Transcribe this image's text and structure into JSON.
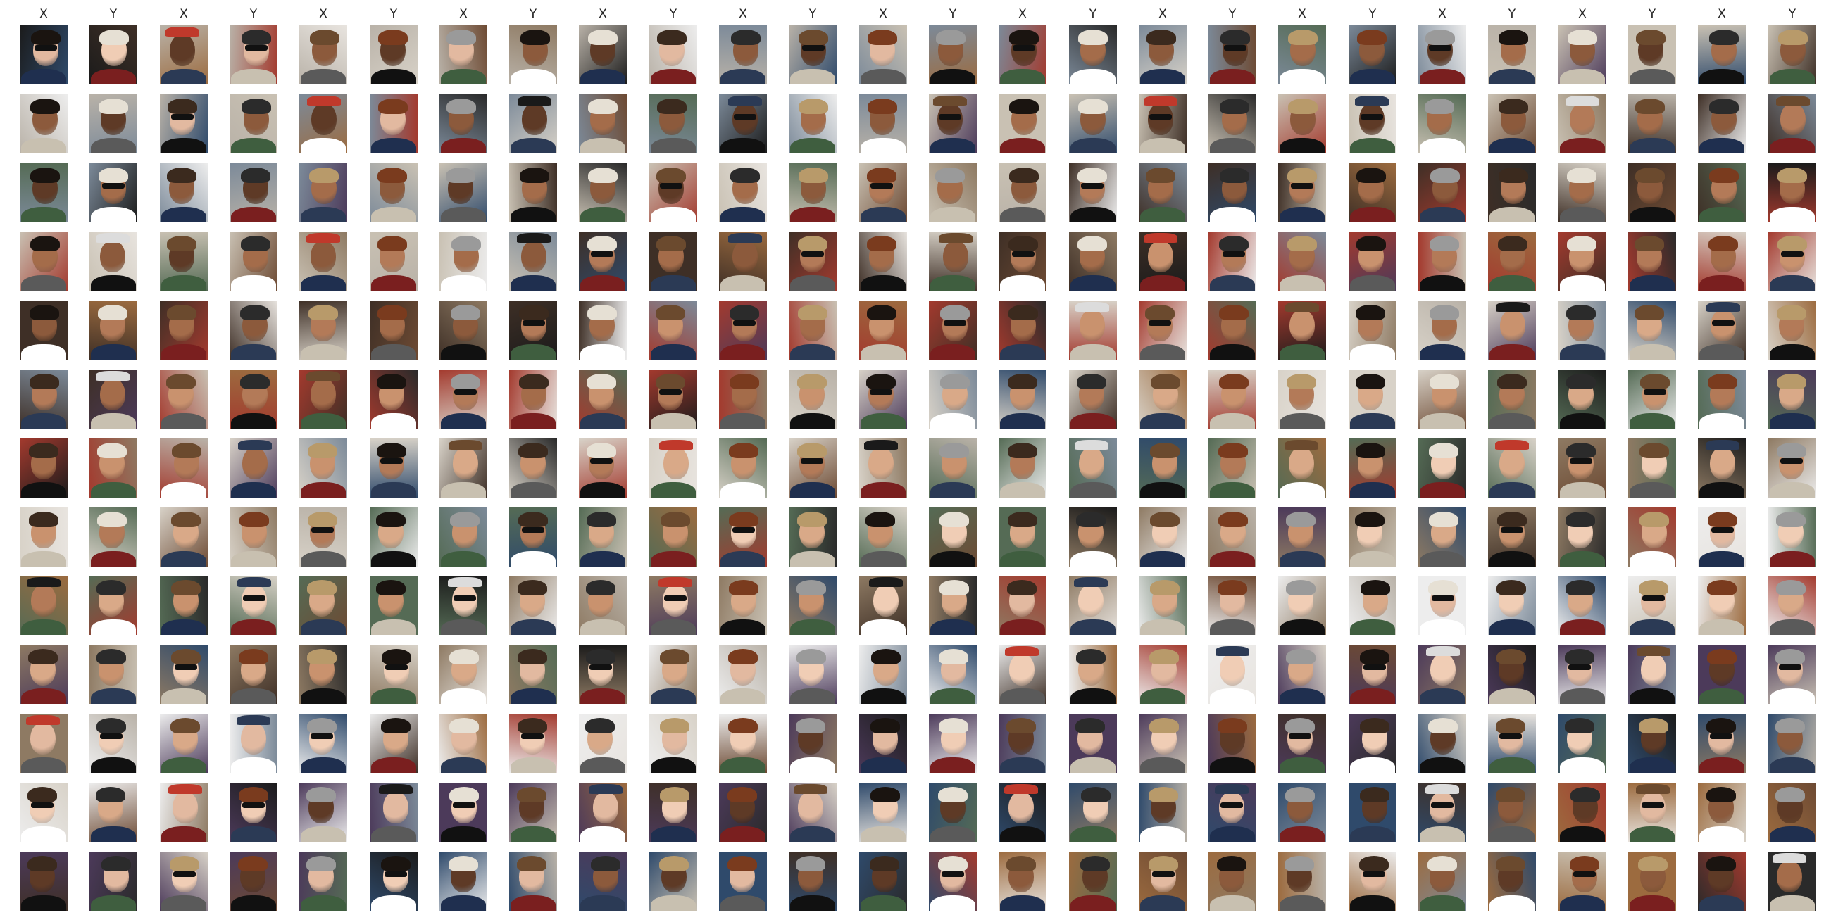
{
  "columns": [
    "X",
    "Y",
    "X",
    "Y",
    "X",
    "Y",
    "X",
    "Y",
    "X",
    "Y",
    "X",
    "Y",
    "X",
    "Y",
    "X",
    "Y",
    "X",
    "Y",
    "X",
    "Y",
    "X",
    "Y",
    "X",
    "Y",
    "X",
    "Y"
  ],
  "grid": {
    "rows": 13,
    "cols": 26,
    "item_type": "face-photo-thumbnail"
  },
  "palette": {
    "backgrounds": [
      "#2a2a2a",
      "#e8e4df",
      "#6d4a33",
      "#1b1b1b",
      "#b9b2a8",
      "#7c8a99",
      "#c9c1b3",
      "#3e2f26",
      "#a33a2e",
      "#d8d2c8",
      "#556b55",
      "#8e7a63",
      "#ededed",
      "#4c3a5a",
      "#2f4a6b",
      "#9c6b3f"
    ],
    "skin": [
      "#e2b9a0",
      "#c9926e",
      "#8c5a3c",
      "#f0cdb5",
      "#b37a58",
      "#5e3a26",
      "#d9a988",
      "#a46c4a"
    ],
    "hair": [
      "#1a1410",
      "#3b2a1e",
      "#6b4a2e",
      "#b89a6a",
      "#9a9a9a",
      "#e6e0d4",
      "#2b2b2b",
      "#7a3b1e"
    ],
    "clothes": [
      "#111111",
      "#2b3a55",
      "#ffffff",
      "#5a5a5a",
      "#7a1f1f",
      "#3f5e3f",
      "#c8c0b0",
      "#1f2f4f"
    ]
  }
}
